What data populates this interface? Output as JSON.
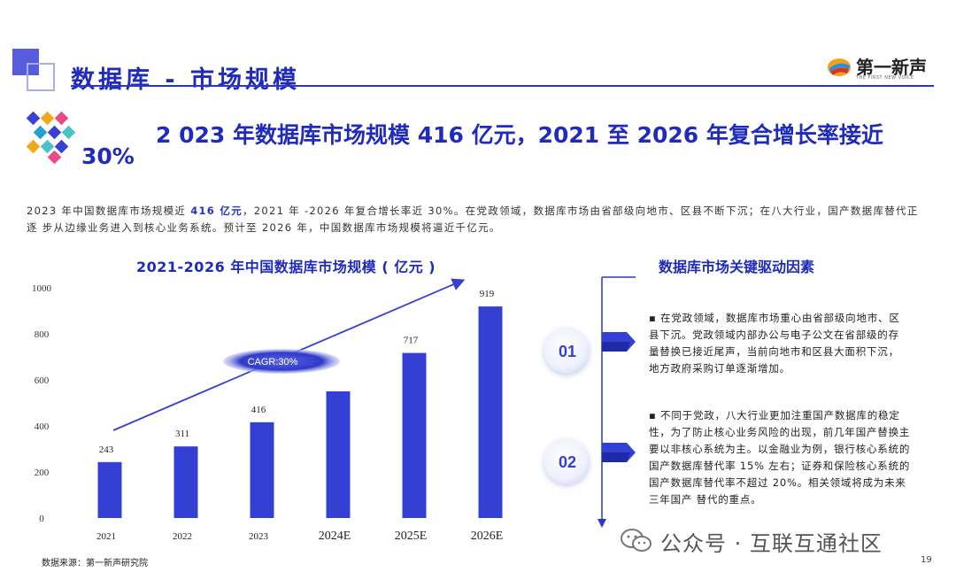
{
  "header": {
    "title": "数据库 - 市场规模",
    "logo_text": "第一新声",
    "logo_sub": "THE FIRST NEW VOICE"
  },
  "headline": {
    "line1": "2 023 年数据库市场规模 416 亿元，2021 至 2026 年复合增长率接近",
    "line2": "30%"
  },
  "description": {
    "part1": "2023 年中国数据库市场规模近 ",
    "highlight": "416 亿元",
    "part2": "，2021 年 -2026 年复合增长率近 30%。在党政领域，数据库市场由省部级向地市、区县不断下沉；在八大行业，国产数据库替代正逐 步从边缘业务进入到核心业务系统。预计至 2026 年，中国数据库市场规模将逼近千亿元。"
  },
  "chart_data": {
    "type": "bar",
    "title": "2021-2026 年中国数据库市场规模 ( 亿元 )",
    "categories": [
      "2021",
      "2022",
      "2023",
      "2024E",
      "2025E",
      "2026E"
    ],
    "values": [
      243,
      311,
      416,
      550,
      717,
      919
    ],
    "data_labels": [
      "243",
      "311",
      "416",
      "",
      "717",
      "919"
    ],
    "ylim": [
      0,
      1000
    ],
    "yticks": [
      0,
      200,
      400,
      600,
      800,
      1000
    ],
    "annotation": "CAGR:30%",
    "bar_color": "#3440d4",
    "grid": false
  },
  "source": "数据来源：第一新声研究院",
  "right_panel": {
    "title": "数据库市场关键驱动因素",
    "items": [
      {
        "num": "01",
        "text": "▪ 在党政领域，数据库市场重心由省部级向地市、区县下沉。党政领域内部办公与电子公文在省部级的存量替换已接近尾声，当前向地市和区县大面积下沉，地方政府采购订单逐渐增加。"
      },
      {
        "num": "02",
        "text": "▪ 不同于党政，八大行业更加注重国产数据库的稳定性，为了防止核心业务风险的出现，前几年国产替换主要以非核心系统为主。以金融业为例，银行核心系统的国产数据库替代率 15% 左右；证券和保险核心系统的国产数据库替代率不超过 20%。相关领域将成为未来三年国产 替代的重点。"
      }
    ]
  },
  "watermark": "公众号 · 互联互通社区",
  "page_number": "19",
  "colors": {
    "accent": "#1f2bbd",
    "bar": "#3440d4"
  }
}
